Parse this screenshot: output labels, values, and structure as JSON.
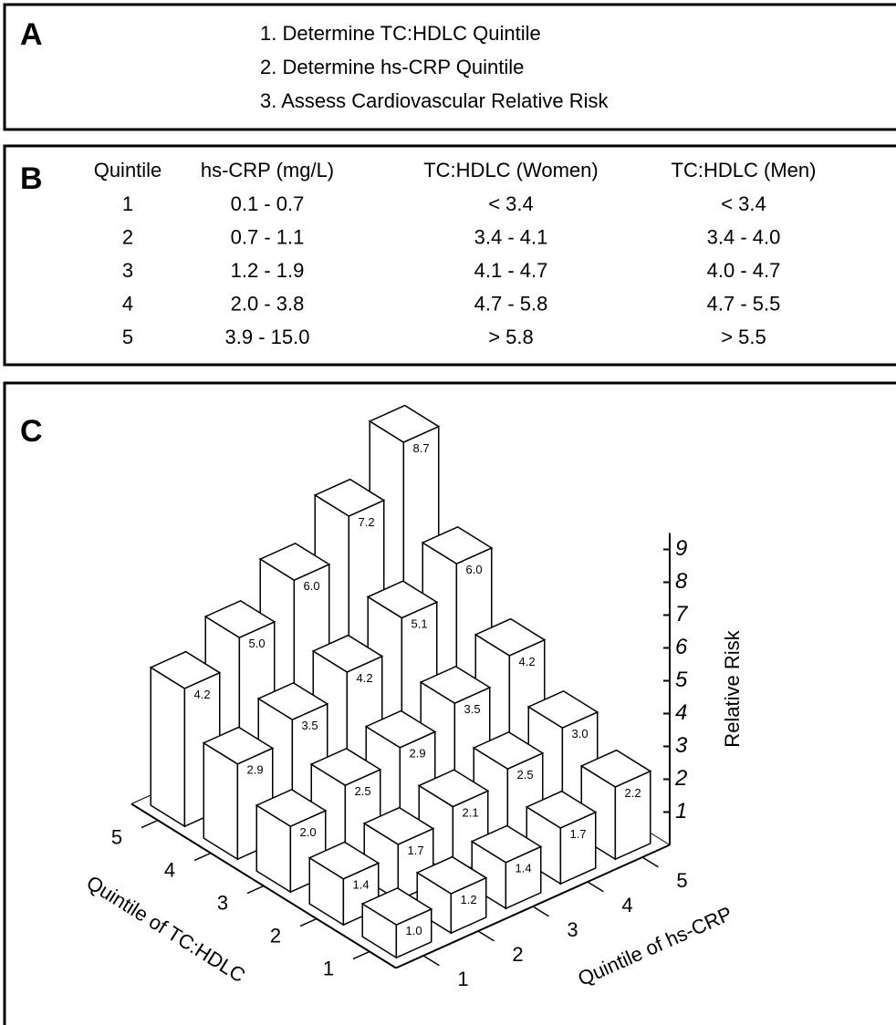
{
  "panel_a": {
    "label": "A",
    "steps": [
      "1. Determine TC:HDLC Quintile",
      "2. Determine hs-CRP Quintile",
      "3. Assess Cardiovascular Relative Risk"
    ]
  },
  "panel_b": {
    "label": "B",
    "header": [
      "Quintile",
      "hs-CRP (mg/L)",
      "TC:HDLC (Women)",
      "TC:HDLC (Men)"
    ],
    "rows": [
      [
        "1",
        "0.1 - 0.7",
        "< 3.4",
        "< 3.4"
      ],
      [
        "2",
        "0.7 - 1.1",
        "3.4 - 4.1",
        "3.4 - 4.0"
      ],
      [
        "3",
        "1.2 - 1.9",
        "4.1 - 4.7",
        "4.0 - 4.7"
      ],
      [
        "4",
        "2.0 - 3.8",
        "4.7 - 5.8",
        "4.7 - 5.5"
      ],
      [
        "5",
        "3.9 - 15.0",
        "> 5.8",
        "> 5.5"
      ]
    ]
  },
  "chart_data": {
    "type": "bar3d",
    "panel_label": "C",
    "x_label": "Quintile of TC:HDLC",
    "y_label": "Quintile of hs-CRP",
    "z_label": "Relative Risk",
    "x_categories": [
      "1",
      "2",
      "3",
      "4",
      "5"
    ],
    "y_categories": [
      "1",
      "2",
      "3",
      "4",
      "5"
    ],
    "values": [
      [
        1.0,
        1.2,
        1.4,
        1.7,
        2.2
      ],
      [
        1.4,
        1.7,
        2.1,
        2.5,
        3.0
      ],
      [
        2.0,
        2.5,
        2.9,
        3.5,
        4.2
      ],
      [
        2.9,
        3.5,
        4.2,
        5.1,
        6.0
      ],
      [
        4.2,
        5.0,
        6.0,
        7.2,
        8.7
      ]
    ],
    "value_labels": [
      [
        "1.0",
        "1.2",
        "1.4",
        "1.7",
        "2.2"
      ],
      [
        "1.4",
        "1.7",
        "2.1",
        "2.5",
        "3.0"
      ],
      [
        "2.0",
        "2.5",
        "2.9",
        "3.5",
        "4.2"
      ],
      [
        "2.9",
        "3.5",
        "4.2",
        "5.1",
        "6.0"
      ],
      [
        "4.2",
        "5.0",
        "6.0",
        "7.2",
        "8.7"
      ]
    ],
    "zlim": [
      0,
      9.5
    ],
    "zticks": [
      1,
      2,
      3,
      4,
      5,
      6,
      7,
      8,
      9
    ],
    "color": "#ffffff"
  }
}
